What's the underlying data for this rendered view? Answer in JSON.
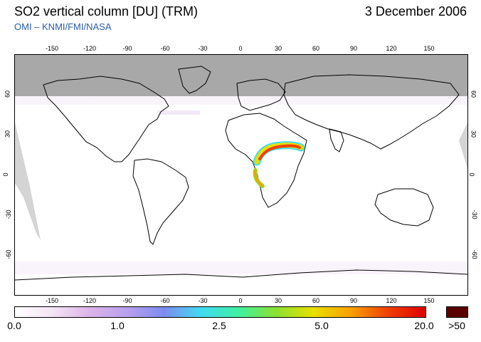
{
  "header": {
    "title": "SO2 vertical column [DU] (TRM)",
    "date": "3 December 2006",
    "credit": "OMI  –  KNMI/FMI/NASA"
  },
  "map": {
    "longitude_ticks": [
      "-150",
      "-120",
      "-90",
      "-60",
      "-30",
      "0",
      "30",
      "60",
      "90",
      "120",
      "150"
    ],
    "latitude_ticks_left": [
      "60",
      "30",
      "0",
      "-30",
      "-60"
    ],
    "latitude_ticks_right": [
      "60",
      "30",
      "0",
      "-30",
      "-60"
    ],
    "colors": {
      "no_data": "#d4d4d4",
      "polar_night": "#a8a8a8",
      "coastline": "#000000"
    }
  },
  "colorbar": {
    "labels": [
      "0.0",
      "1.0",
      "2.5",
      "5.0",
      "20.0"
    ],
    "overflow_label": ">50",
    "overflow_color": "#5a0000",
    "gradient_colors": [
      "#ffffff",
      "#f4e4f4",
      "#dcb4e8",
      "#b8a0ec",
      "#7c8cf0",
      "#40dcf0",
      "#40f0a0",
      "#8ce030",
      "#e8e000",
      "#f8a000",
      "#f04000",
      "#e00000"
    ]
  }
}
